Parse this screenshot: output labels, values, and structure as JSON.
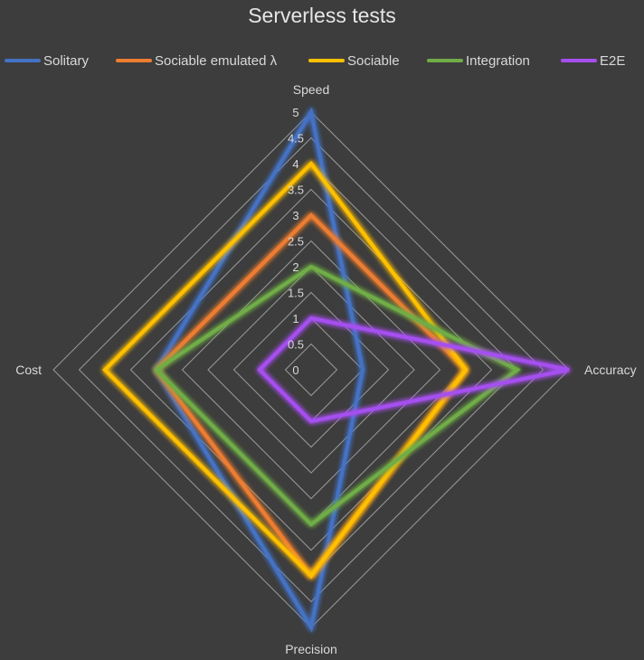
{
  "chart_data": {
    "type": "radar",
    "title": "Serverless tests",
    "axes": [
      "Speed",
      "Accuracy",
      "Precision",
      "Cost"
    ],
    "scale": {
      "min": 0,
      "max": 5,
      "step": 0.5
    },
    "tick_labels": [
      "0",
      "0.5",
      "1",
      "1.5",
      "2",
      "2.5",
      "3",
      "3.5",
      "4",
      "4.5",
      "5"
    ],
    "legend_position": "top",
    "series": [
      {
        "name": "Solitary",
        "color": "#4472c4",
        "values": [
          5,
          1,
          5,
          3
        ]
      },
      {
        "name": "Sociable emulated λ",
        "color": "#ed7d31",
        "values": [
          3,
          3,
          4,
          3
        ]
      },
      {
        "name": "Sociable",
        "color": "#ffc000",
        "values": [
          4,
          3,
          4,
          4
        ]
      },
      {
        "name": "Integration",
        "color": "#70ad47",
        "values": [
          2,
          4,
          3,
          3
        ]
      },
      {
        "name": "E2E",
        "color": "#a64ff0",
        "values": [
          1,
          5,
          1,
          1
        ]
      }
    ]
  }
}
